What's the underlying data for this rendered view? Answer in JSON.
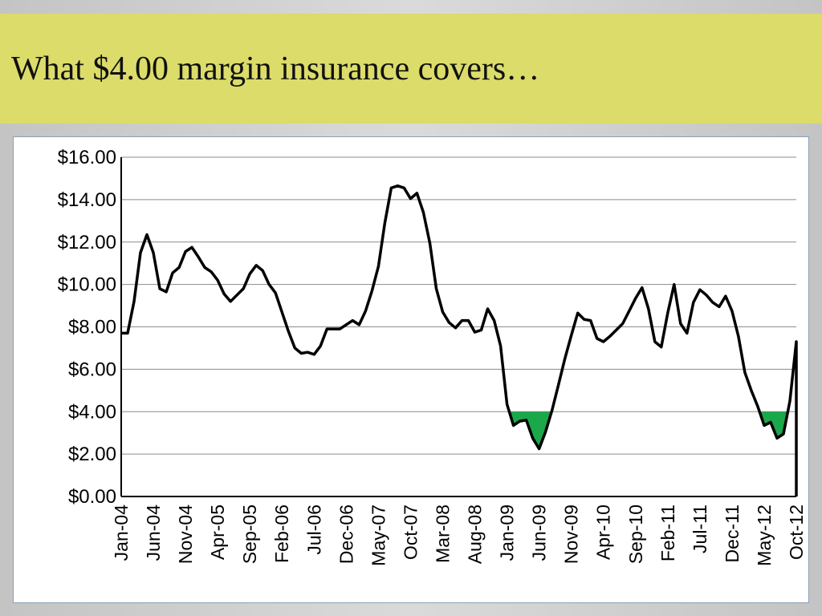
{
  "slide": {
    "title": "What $4.00 margin insurance covers…"
  },
  "chart_data": {
    "type": "line",
    "title": "",
    "xlabel": "",
    "ylabel": "",
    "ylim": [
      0,
      16
    ],
    "y_ticks": [
      "$0.00",
      "$2.00",
      "$4.00",
      "$6.00",
      "$8.00",
      "$10.00",
      "$12.00",
      "$14.00",
      "$16.00"
    ],
    "x_tick_labels": [
      "Jan-04",
      "Jun-04",
      "Nov-04",
      "Apr-05",
      "Sep-05",
      "Feb-06",
      "Jul-06",
      "Dec-06",
      "May-07",
      "Oct-07",
      "Mar-08",
      "Aug-08",
      "Jan-09",
      "Jun-09",
      "Nov-09",
      "Apr-10",
      "Sep-10",
      "Feb-11",
      "Jul-11",
      "Dec-11",
      "May-12",
      "Oct-12"
    ],
    "grid": true,
    "line_color": "#000000",
    "fill_color": "#1aa84a",
    "coverage_threshold": 4.0,
    "series": [
      {
        "values": [
          7.7,
          7.7,
          9.2,
          11.5,
          12.35,
          11.5,
          9.8,
          9.65,
          10.55,
          10.8,
          11.55,
          11.75,
          11.3,
          10.8,
          10.6,
          10.2,
          9.55,
          9.2,
          9.5,
          9.8,
          10.5,
          10.9,
          10.65,
          10.0,
          9.6,
          8.7,
          7.8,
          7.0,
          6.75,
          6.8,
          6.7,
          7.1,
          7.9,
          7.9,
          7.9,
          8.1,
          8.3,
          8.1,
          8.75,
          9.7,
          10.85,
          12.9,
          14.55,
          14.65,
          14.55,
          14.05,
          14.3,
          13.4,
          11.95,
          9.8,
          8.7,
          8.2,
          7.95,
          8.3,
          8.3,
          7.75,
          7.85,
          8.85,
          8.3,
          7.1,
          4.35,
          3.35,
          3.55,
          3.6,
          2.75,
          2.25,
          3.05,
          4.05,
          5.25,
          6.5,
          7.6,
          8.65,
          8.35,
          8.3,
          7.45,
          7.3,
          7.55,
          7.85,
          8.15,
          8.75,
          9.35,
          9.85,
          8.85,
          7.3,
          7.05,
          8.65,
          10.0,
          8.15,
          7.7,
          9.15,
          9.75,
          9.5,
          9.15,
          8.95,
          9.45,
          8.75,
          7.55,
          5.85,
          5.0,
          4.25,
          3.35,
          3.5,
          2.75,
          2.95,
          4.5,
          7.3
        ]
      }
    ]
  }
}
